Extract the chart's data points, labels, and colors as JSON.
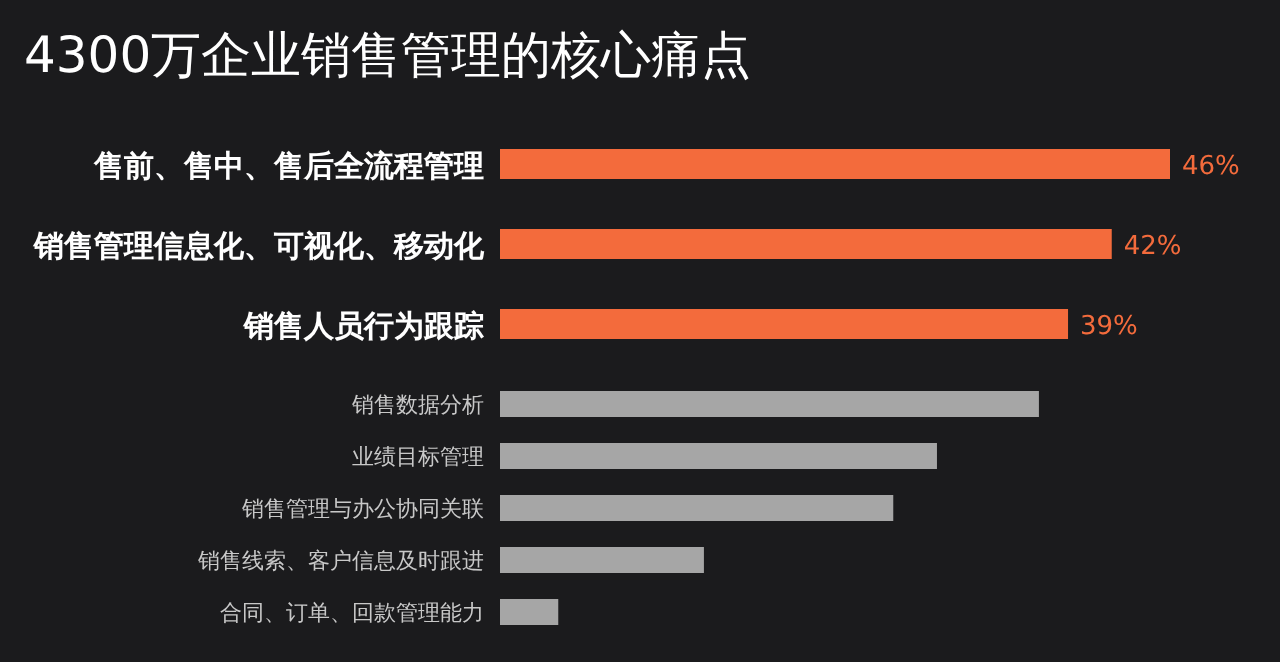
{
  "chart_data": {
    "type": "bar",
    "orientation": "horizontal",
    "title": "4300万企业销售管理的核心痛点",
    "categories": [
      "售前、售中、售后全流程管理",
      "销售管理信息化、可视化、移动化",
      "销售人员行为跟踪",
      "销售数据分析",
      "业绩目标管理",
      "销售管理与办公协同关联",
      "销售线索、客户信息及时跟进",
      "合同、订单、回款管理能力"
    ],
    "values": [
      46,
      42,
      39,
      37,
      30,
      27,
      14,
      4
    ],
    "value_labels": [
      "46%",
      "42%",
      "39%",
      null,
      null,
      null,
      null,
      null
    ],
    "colors": [
      "#f36b3c",
      "#f36b3c",
      "#f36b3c",
      "#a6a6a6",
      "#a6a6a6",
      "#a6a6a6",
      "#a6a6a6",
      "#a6a6a6"
    ]
  }
}
